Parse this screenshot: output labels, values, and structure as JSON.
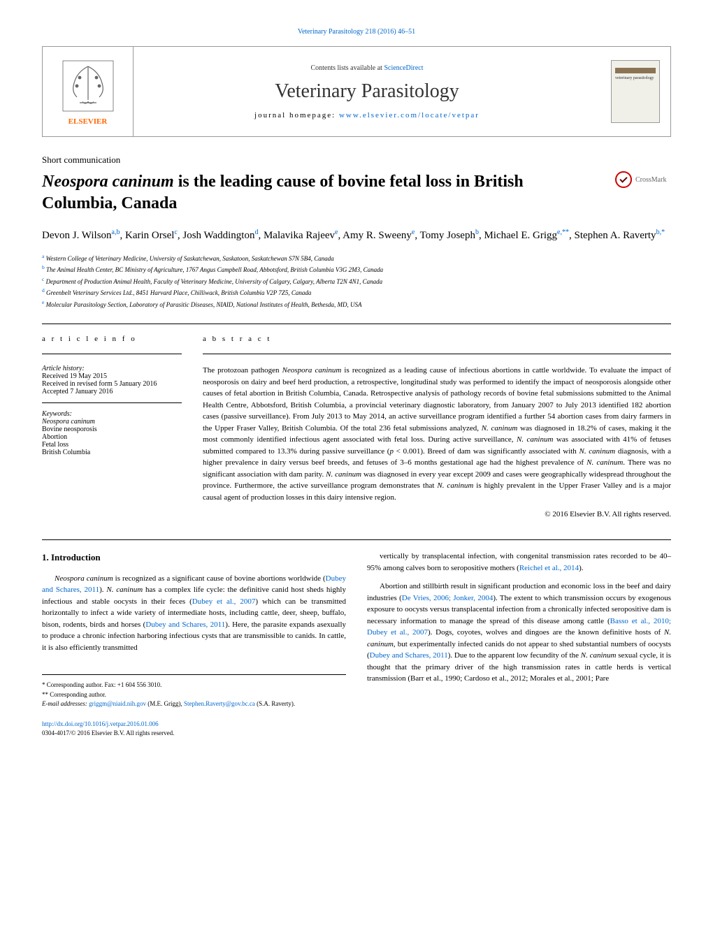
{
  "citation": "Veterinary Parasitology 218 (2016) 46–51",
  "header": {
    "contents": "Contents lists available at ",
    "contents_link": "ScienceDirect",
    "journal_title": "Veterinary Parasitology",
    "homepage_label": "journal homepage: ",
    "homepage_url": "www.elsevier.com/locate/vetpar",
    "publisher": "ELSEVIER",
    "cover_text": "veterinary parasitology"
  },
  "crossmark": "CrossMark",
  "section_label": "Short communication",
  "title_italic": "Neospora caninum",
  "title_rest": " is the leading cause of bovine fetal loss in British Columbia, Canada",
  "authors": [
    {
      "name": "Devon J. Wilson",
      "sup": "a,b"
    },
    {
      "name": "Karin Orsel",
      "sup": "c"
    },
    {
      "name": "Josh Waddington",
      "sup": "d"
    },
    {
      "name": "Malavika Rajeev",
      "sup": "e"
    },
    {
      "name": "Amy R. Sweeny",
      "sup": "e"
    },
    {
      "name": "Tomy Joseph",
      "sup": "b"
    },
    {
      "name": "Michael E. Grigg",
      "sup": "e,**"
    },
    {
      "name": "Stephen A. Raverty",
      "sup": "b,*"
    }
  ],
  "affiliations": [
    {
      "sup": "a",
      "text": "Western College of Veterinary Medicine, University of Saskatchewan, Saskatoon, Saskatchewan S7N 5B4, Canada"
    },
    {
      "sup": "b",
      "text": "The Animal Health Center, BC Ministry of Agriculture, 1767 Angus Campbell Road, Abbotsford, British Columbia V3G 2M3, Canada"
    },
    {
      "sup": "c",
      "text": "Department of Production Animal Health, Faculty of Veterinary Medicine, University of Calgary, Calgary, Alberta T2N 4N1, Canada"
    },
    {
      "sup": "d",
      "text": "Greenbelt Veterinary Services Ltd., 8451 Harvard Place, Chilliwack, British Columbia V2P 7Z5, Canada"
    },
    {
      "sup": "e",
      "text": "Molecular Parasitology Section, Laboratory of Parasitic Diseases, NIAID, National Institutes of Health, Bethesda, MD, USA"
    }
  ],
  "article_info": {
    "header": "a r t i c l e   i n f o",
    "history_label": "Article history:",
    "history": [
      "Received 19 May 2015",
      "Received in revised form 5 January 2016",
      "Accepted 7 January 2016"
    ],
    "keywords_label": "Keywords:",
    "keywords": [
      "Neospora caninum",
      "Bovine neosporosis",
      "Abortion",
      "Fetal loss",
      "British Columbia"
    ]
  },
  "abstract": {
    "header": "a b s t r a c t",
    "text": "The protozoan pathogen Neospora caninum is recognized as a leading cause of infectious abortions in cattle worldwide. To evaluate the impact of neosporosis on dairy and beef herd production, a retrospective, longitudinal study was performed to identify the impact of neosporosis alongside other causes of fetal abortion in British Columbia, Canada. Retrospective analysis of pathology records of bovine fetal submissions submitted to the Animal Health Centre, Abbotsford, British Columbia, a provincial veterinary diagnostic laboratory, from January 2007 to July 2013 identified 182 abortion cases (passive surveillance). From July 2013 to May 2014, an active surveillance program identified a further 54 abortion cases from dairy farmers in the Upper Fraser Valley, British Columbia. Of the total 236 fetal submissions analyzed, N. caninum was diagnosed in 18.2% of cases, making it the most commonly identified infectious agent associated with fetal loss. During active surveillance, N. caninum was associated with 41% of fetuses submitted compared to 13.3% during passive surveillance (p < 0.001). Breed of dam was significantly associated with N. caninum diagnosis, with a higher prevalence in dairy versus beef breeds, and fetuses of 3–6 months gestational age had the highest prevalence of N. caninum. There was no significant association with dam parity. N. caninum was diagnosed in every year except 2009 and cases were geographically widespread throughout the province. Furthermore, the active surveillance program demonstrates that N. caninum is highly prevalent in the Upper Fraser Valley and is a major causal agent of production losses in this dairy intensive region.",
    "copyright": "© 2016 Elsevier B.V. All rights reserved."
  },
  "body": {
    "heading": "1. Introduction",
    "left_col": [
      "Neospora caninum is recognized as a significant cause of bovine abortions worldwide (Dubey and Schares, 2011). N. caninum has a complex life cycle: the definitive canid host sheds highly infectious and stable oocysts in their feces (Dubey et al., 2007) which can be transmitted horizontally to infect a wide variety of intermediate hosts, including cattle, deer, sheep, buffalo, bison, rodents, birds and horses (Dubey and Schares, 2011). Here, the parasite expands asexually to produce a chronic infection harboring infectious cysts that are transmissible to canids. In cattle, it is also efficiently transmitted"
    ],
    "right_col": [
      "vertically by transplacental infection, with congenital transmission rates recorded to be 40–95% among calves born to seropositive mothers (Reichel et al., 2014).",
      "Abortion and stillbirth result in significant production and economic loss in the beef and dairy industries (De Vries, 2006; Jonker, 2004). The extent to which transmission occurs by exogenous exposure to oocysts versus transplacental infection from a chronically infected seropositive dam is necessary information to manage the spread of this disease among cattle (Basso et al., 2010; Dubey et al., 2007). Dogs, coyotes, wolves and dingoes are the known definitive hosts of N. caninum, but experimentally infected canids do not appear to shed substantial numbers of oocysts (Dubey and Schares, 2011). Due to the apparent low fecundity of the N. caninum sexual cycle, it is thought that the primary driver of the high transmission rates in cattle herds is vertical transmission (Barr et al., 1990; Cardoso et al., 2012; Morales et al., 2001; Pare"
    ]
  },
  "footer": {
    "corr1": "* Corresponding author. Fax: +1 604 556 3010.",
    "corr2": "** Corresponding author.",
    "email_label": "E-mail addresses: ",
    "email1": "griggm@niaid.nih.gov",
    "email1_author": " (M.E. Grigg), ",
    "email2": "Stephen.Raverty@gov.bc.ca",
    "email2_author": " (S.A. Raverty).",
    "doi": "http://dx.doi.org/10.1016/j.vetpar.2016.01.006",
    "doi_line2": "0304-4017/© 2016 Elsevier B.V. All rights reserved."
  },
  "colors": {
    "link": "#0066cc",
    "orange": "#ff6600",
    "text": "#000000"
  }
}
